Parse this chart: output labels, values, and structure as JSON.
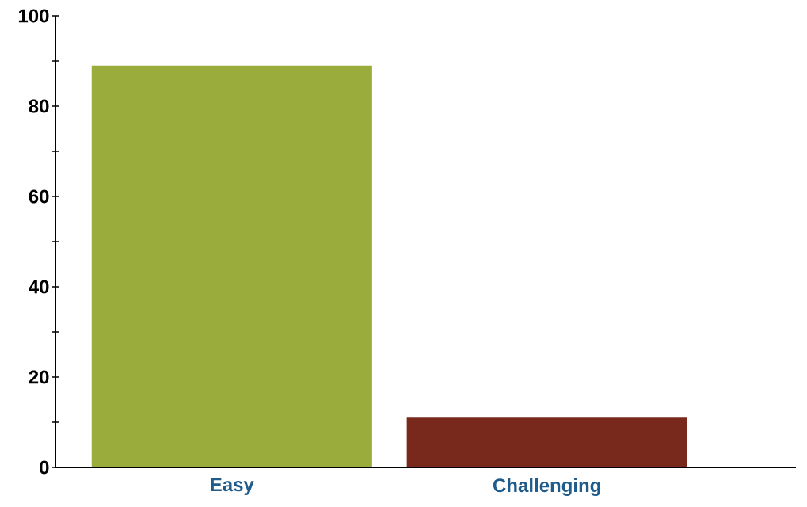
{
  "chart_data": {
    "type": "bar",
    "categories": [
      "Easy",
      "Challenging"
    ],
    "colors": [
      "#9aad3c",
      "#78291b"
    ],
    "values": [
      89,
      11
    ],
    "ylim": [
      0,
      100
    ],
    "yticks": [
      0,
      {
        "value": 10,
        "label": null
      },
      20,
      {
        "value": 30,
        "label": null
      },
      40,
      {
        "value": 50,
        "label": null
      },
      60,
      {
        "value": 70,
        "label": null
      },
      80,
      {
        "value": 90,
        "label": null
      },
      100
    ],
    "grid": false
  }
}
